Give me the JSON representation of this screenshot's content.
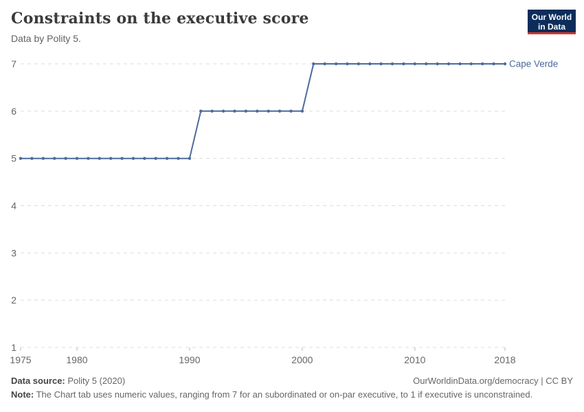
{
  "header": {
    "title": "Constraints on the executive score",
    "subtitle": "Data by Polity 5.",
    "logo_line1": "Our World",
    "logo_line2": "in Data",
    "logo_bg_color": "#0c2d5a",
    "logo_stripe_color": "#d8352b"
  },
  "footer": {
    "data_source_label": "Data source:",
    "data_source_value": " Polity 5 (2020)",
    "link_text": "OurWorldinData.org/democracy | CC BY",
    "note_label": "Note:",
    "note_text": " The Chart tab uses numeric values, ranging from 7 for an subordinated or on-par executive, to 1 if executive is unconstrained."
  },
  "chart_data": {
    "type": "line",
    "title": "Constraints on the executive score",
    "subtitle": "Data by Polity 5.",
    "x": [
      1975,
      1976,
      1977,
      1978,
      1979,
      1980,
      1981,
      1982,
      1983,
      1984,
      1985,
      1986,
      1987,
      1988,
      1989,
      1990,
      1991,
      1992,
      1993,
      1994,
      1995,
      1996,
      1997,
      1998,
      1999,
      2000,
      2001,
      2002,
      2003,
      2004,
      2005,
      2006,
      2007,
      2008,
      2009,
      2010,
      2011,
      2012,
      2013,
      2014,
      2015,
      2016,
      2017,
      2018
    ],
    "series": [
      {
        "name": "Cape Verde",
        "values": [
          5,
          5,
          5,
          5,
          5,
          5,
          5,
          5,
          5,
          5,
          5,
          5,
          5,
          5,
          5,
          5,
          6,
          6,
          6,
          6,
          6,
          6,
          6,
          6,
          6,
          6,
          7,
          7,
          7,
          7,
          7,
          7,
          7,
          7,
          7,
          7,
          7,
          7,
          7,
          7,
          7,
          7,
          7,
          7
        ]
      }
    ],
    "xlim": [
      1975,
      2018
    ],
    "ylim": [
      1,
      7
    ],
    "y_ticks": [
      1,
      2,
      3,
      4,
      5,
      6,
      7
    ],
    "x_ticks": [
      1975,
      1980,
      1990,
      2000,
      2010,
      2018
    ],
    "grid": "horizontal dashed",
    "legend_position": "line-end-label",
    "line_color": "#4C6A9C",
    "grid_color": "#dddddd",
    "tick_label_color": "#666666"
  }
}
